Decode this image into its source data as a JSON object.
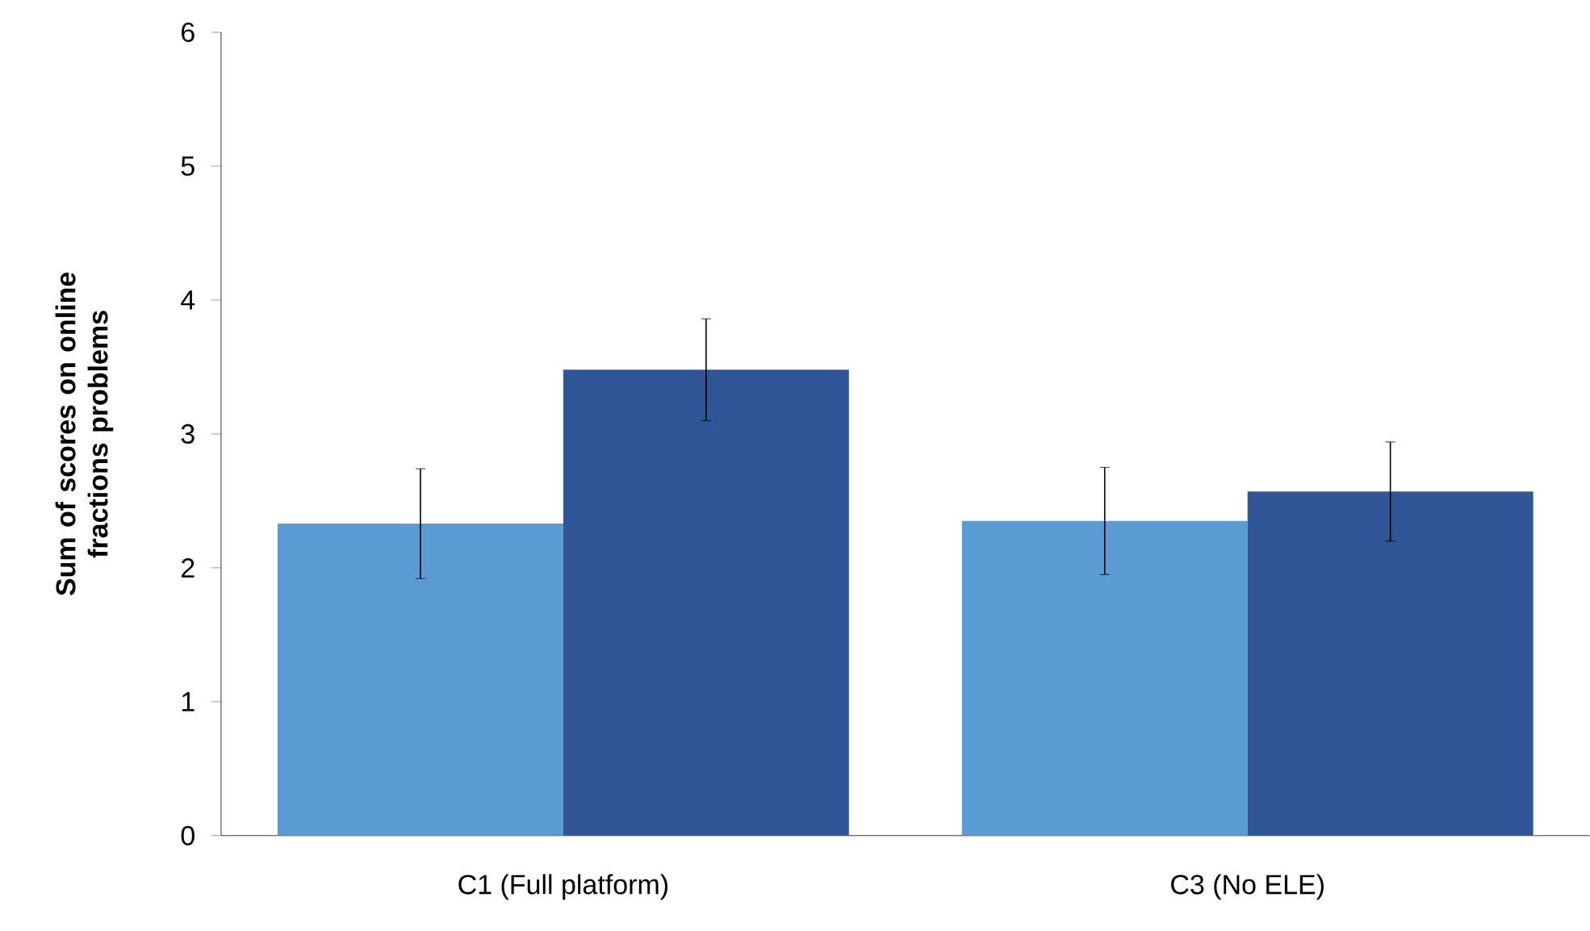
{
  "chart_data": {
    "type": "bar",
    "ylabel": "Sum of scores on online fractions problems",
    "categories": [
      "C1 (Full platform)",
      "C3 (No ELE)"
    ],
    "series": [
      {
        "color": "#5b9bd5",
        "values": [
          2.33,
          2.35
        ],
        "errors": [
          0.41,
          0.4
        ]
      },
      {
        "color": "#2f5597",
        "values": [
          3.48,
          2.57
        ],
        "errors": [
          0.38,
          0.37
        ]
      }
    ],
    "ylim": [
      0,
      6
    ],
    "yticks": [
      0,
      1,
      2,
      3,
      4,
      5,
      6
    ],
    "grid": false
  }
}
